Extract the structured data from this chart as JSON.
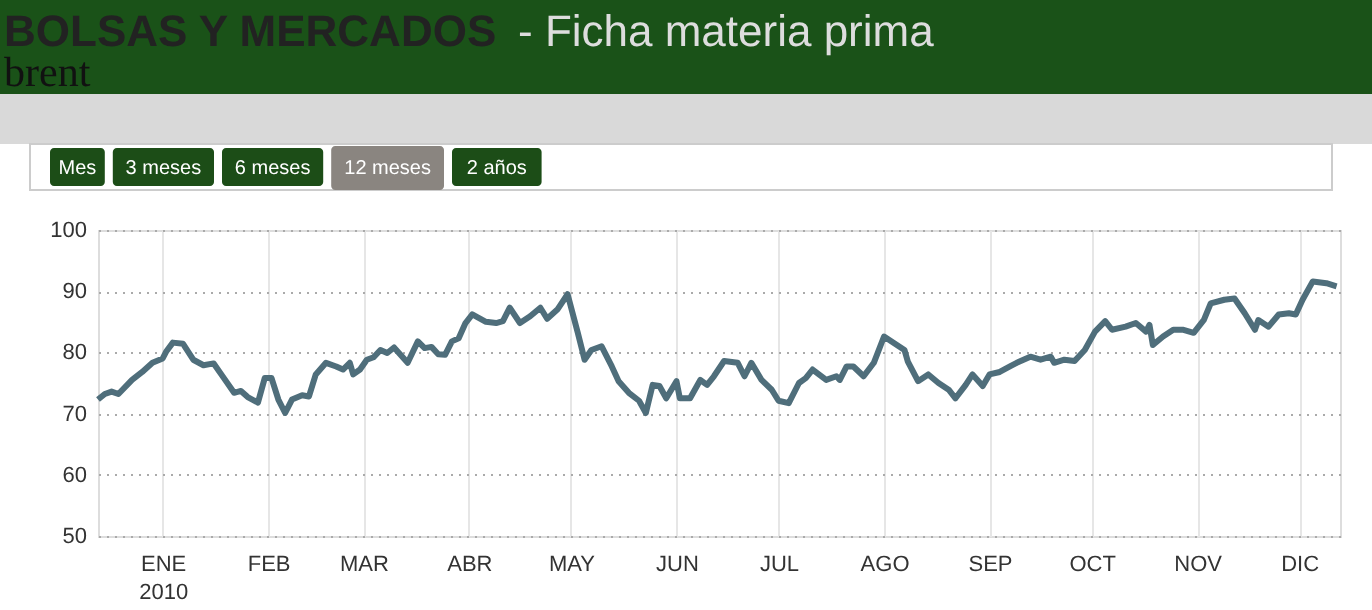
{
  "chart_data": {
    "type": "line",
    "title": "BOLSAS Y MERCADOS",
    "subtitle": "brent",
    "annotations": [
      "- Ficha materia prima",
      "Mes",
      "3 meses",
      "6 meses",
      "12 meses",
      "2 años"
    ],
    "x": [
      "2009-12-13",
      "2009-12-15",
      "2009-12-17",
      "2009-12-19",
      "2009-12-23",
      "2009-12-26",
      "2009-12-29",
      "2010-01-01",
      "2010-01-02",
      "2010-01-04",
      "2010-01-07",
      "2010-01-10",
      "2010-01-13",
      "2010-01-16",
      "2010-01-19",
      "2010-01-22",
      "2010-01-24",
      "2010-01-26",
      "2010-01-29",
      "2010-01-31",
      "2010-02-02",
      "2010-02-04",
      "2010-02-06",
      "2010-02-08",
      "2010-02-11",
      "2010-02-13",
      "2010-02-15",
      "2010-02-18",
      "2010-02-21",
      "2010-02-23",
      "2010-02-25",
      "2010-02-26",
      "2010-02-28",
      "2010-03-02",
      "2010-03-04",
      "2010-03-06",
      "2010-03-08",
      "2010-03-10",
      "2010-03-14",
      "2010-03-17",
      "2010-03-19",
      "2010-03-21",
      "2010-03-23",
      "2010-03-25",
      "2010-03-27",
      "2010-03-29",
      "2010-03-31",
      "2010-04-02",
      "2010-04-06",
      "2010-04-09",
      "2010-04-11",
      "2010-04-13",
      "2010-04-16",
      "2010-04-19",
      "2010-04-22",
      "2010-04-24",
      "2010-04-27",
      "2010-04-30",
      "2010-05-03",
      "2010-05-05",
      "2010-05-07",
      "2010-05-10",
      "2010-05-13",
      "2010-05-15",
      "2010-05-18",
      "2010-05-21",
      "2010-05-23",
      "2010-05-25",
      "2010-05-27",
      "2010-05-29",
      "2010-06-01",
      "2010-06-02",
      "2010-06-05",
      "2010-06-08",
      "2010-06-10",
      "2010-06-12",
      "2010-06-15",
      "2010-06-19",
      "2010-06-21",
      "2010-06-23",
      "2010-06-26",
      "2010-06-29",
      "2010-07-01",
      "2010-07-04",
      "2010-07-07",
      "2010-07-09",
      "2010-07-11",
      "2010-07-15",
      "2010-07-18",
      "2010-07-19",
      "2010-07-21",
      "2010-07-23",
      "2010-07-26",
      "2010-07-29",
      "2010-08-01",
      "2010-08-04",
      "2010-08-07",
      "2010-08-08",
      "2010-08-11",
      "2010-08-14",
      "2010-08-17",
      "2010-08-20",
      "2010-08-22",
      "2010-08-25",
      "2010-08-27",
      "2010-08-30",
      "2010-09-01",
      "2010-09-04",
      "2010-09-07",
      "2010-09-09",
      "2010-09-13",
      "2010-09-16",
      "2010-09-19",
      "2010-09-20",
      "2010-09-23",
      "2010-09-26",
      "2010-09-29",
      "2010-10-02",
      "2010-10-05",
      "2010-10-07",
      "2010-10-11",
      "2010-10-14",
      "2010-10-17",
      "2010-10-18",
      "2010-10-19",
      "2010-10-22",
      "2010-10-25",
      "2010-10-28",
      "2010-10-31",
      "2010-11-03",
      "2010-11-05",
      "2010-11-09",
      "2010-11-12",
      "2010-11-15",
      "2010-11-18",
      "2010-11-19",
      "2010-11-22",
      "2010-11-25",
      "2010-11-28",
      "2010-11-30",
      "2010-12-02",
      "2010-12-05",
      "2010-12-09",
      "2010-12-12"
    ],
    "series": [
      {
        "color": "#4f6e7b",
        "values": [
          72.3,
          73.2,
          73.6,
          73.2,
          75.5,
          76.8,
          78.3,
          79,
          80.1,
          81.6,
          81.4,
          78.8,
          77.9,
          78.2,
          75.8,
          73.4,
          73.7,
          72.7,
          71.8,
          75.8,
          75.8,
          72.3,
          70.1,
          72.3,
          73,
          72.8,
          76.4,
          78.3,
          77.7,
          77.2,
          78.3,
          76.4,
          77.2,
          78.8,
          79.2,
          80.4,
          79.9,
          80.8,
          78.3,
          81.8,
          80.7,
          80.9,
          79.7,
          79.6,
          81.8,
          82.3,
          84.8,
          86.2,
          85,
          84.8,
          85.1,
          87.3,
          84.8,
          85.9,
          87.3,
          85.5,
          87,
          89.5,
          83.2,
          78.8,
          80.4,
          81,
          77.7,
          75.3,
          73.4,
          72.1,
          70.1,
          74.7,
          74.5,
          72.5,
          75.3,
          72.5,
          72.5,
          75.5,
          74.7,
          76.1,
          78.6,
          78.3,
          76.1,
          78.3,
          75.5,
          73.9,
          72.1,
          71.7,
          75,
          75.8,
          77.2,
          75.5,
          76.1,
          75.5,
          77.7,
          77.7,
          76.1,
          78.3,
          82.6,
          81.5,
          80.4,
          78.5,
          75.3,
          76.4,
          75,
          73.9,
          72.5,
          74.7,
          76.4,
          74.5,
          76.4,
          76.8,
          77.7,
          78.3,
          79.3,
          78.8,
          79.3,
          78.3,
          78.8,
          78.6,
          80.4,
          83.4,
          85.1,
          83.7,
          84.2,
          84.8,
          83.4,
          84.5,
          81.2,
          82.6,
          83.7,
          83.7,
          83.2,
          85.3,
          88,
          88.6,
          88.8,
          86.4,
          83.7,
          85.3,
          84.2,
          86.2,
          86.4,
          86.2,
          88.6,
          91.6,
          91.3,
          90.8
        ]
      }
    ],
    "xlim": [
      "2009-12-13",
      "2010-12-13"
    ],
    "xticks": [
      {
        "value": "2010-01-01",
        "label": "ENE\n2010"
      },
      {
        "value": "2010-02-01",
        "label": "FEB"
      },
      {
        "value": "2010-03-01",
        "label": "MAR"
      },
      {
        "value": "2010-04-01",
        "label": "ABR"
      },
      {
        "value": "2010-05-01",
        "label": "MAY"
      },
      {
        "value": "2010-06-01",
        "label": "JUN"
      },
      {
        "value": "2010-07-01",
        "label": "JUL"
      },
      {
        "value": "2010-08-01",
        "label": "AGO"
      },
      {
        "value": "2010-09-01",
        "label": "SEP"
      },
      {
        "value": "2010-10-01",
        "label": "OCT"
      },
      {
        "value": "2010-11-01",
        "label": "NOV"
      },
      {
        "value": "2010-12-01",
        "label": "DIC"
      }
    ],
    "ylim": [
      50,
      100
    ],
    "yticks": [
      50,
      60,
      70,
      80,
      90,
      100
    ],
    "grid": true,
    "marker": "none",
    "line_style": "solid"
  }
}
